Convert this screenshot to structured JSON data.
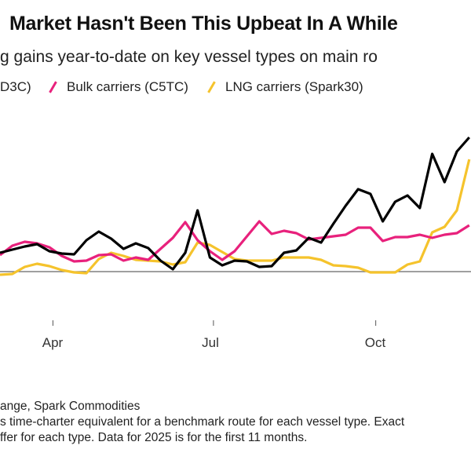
{
  "header": {
    "title": "Market Hasn't Been This Upbeat In A While",
    "subtitle": "g gains year-to-date on key vessel types on main ro"
  },
  "legend": [
    {
      "label": "D3C)",
      "color": "#000000"
    },
    {
      "label": "Bulk carriers (C5TC)",
      "color": "#e8217c"
    },
    {
      "label": "LNG carriers (Spark30)",
      "color": "#f5c32c"
    }
  ],
  "footer": {
    "source": "ange, Spark Commodities",
    "note_line1": "s time-charter equivalent for a benchmark route for each vessel type. Exact",
    "note_line2": "ffer for each type. Data for 2025 is for the first 11 months."
  },
  "chart_data": {
    "type": "line",
    "title": "Market Hasn't Been This Upbeat In A While",
    "xlabel": "",
    "ylabel": "",
    "x_ticks": [
      {
        "label": "Apr",
        "date": "2025-04-01"
      },
      {
        "label": "Jul",
        "date": "2025-07-01"
      },
      {
        "label": "Oct",
        "date": "2025-10-01"
      }
    ],
    "xlim": [
      "2025-03-02",
      "2025-11-24"
    ],
    "ylim": [
      -14,
      206
    ],
    "zero_line": true,
    "grid": false,
    "legend_position": "top",
    "x": [
      "2025-03-02",
      "2025-03-09",
      "2025-03-16",
      "2025-03-23",
      "2025-03-30",
      "2025-04-06",
      "2025-04-13",
      "2025-04-20",
      "2025-04-27",
      "2025-05-04",
      "2025-05-11",
      "2025-05-18",
      "2025-05-25",
      "2025-06-01",
      "2025-06-08",
      "2025-06-15",
      "2025-06-22",
      "2025-06-29",
      "2025-07-06",
      "2025-07-13",
      "2025-07-20",
      "2025-07-27",
      "2025-08-03",
      "2025-08-10",
      "2025-08-17",
      "2025-08-24",
      "2025-08-31",
      "2025-09-07",
      "2025-09-14",
      "2025-09-21",
      "2025-09-28",
      "2025-10-05",
      "2025-10-12",
      "2025-10-19",
      "2025-10-26",
      "2025-11-02",
      "2025-11-09",
      "2025-11-16",
      "2025-11-23"
    ],
    "series": [
      {
        "name": "D3C)",
        "color": "#000000",
        "values": [
          24,
          28,
          32,
          35,
          26,
          23,
          22,
          40,
          51,
          42,
          29,
          36,
          30,
          14,
          3,
          24,
          78,
          18,
          8,
          14,
          13,
          6,
          7,
          24,
          27,
          43,
          37,
          61,
          84,
          105,
          99,
          64,
          89,
          97,
          81,
          150,
          114,
          153,
          171
        ]
      },
      {
        "name": "Bulk carriers (C5TC)",
        "color": "#e8217c",
        "values": [
          21,
          33,
          38,
          36,
          31,
          20,
          13,
          14,
          21,
          22,
          14,
          18,
          15,
          29,
          43,
          63,
          40,
          26,
          15,
          26,
          45,
          64,
          48,
          52,
          49,
          41,
          43,
          45,
          47,
          56,
          56,
          39,
          44,
          44,
          47,
          43,
          47,
          49,
          59
        ]
      },
      {
        "name": "LNG carriers (Spark30)",
        "color": "#f5c32c",
        "values": [
          -4,
          -3,
          6,
          10,
          7,
          2,
          -1,
          -2,
          16,
          24,
          20,
          15,
          14,
          13,
          9,
          12,
          37,
          34,
          25,
          16,
          14,
          14,
          14,
          18,
          18,
          18,
          15,
          8,
          7,
          5,
          -1,
          -1,
          -1,
          9,
          13,
          50,
          57,
          78,
          143
        ]
      }
    ]
  }
}
